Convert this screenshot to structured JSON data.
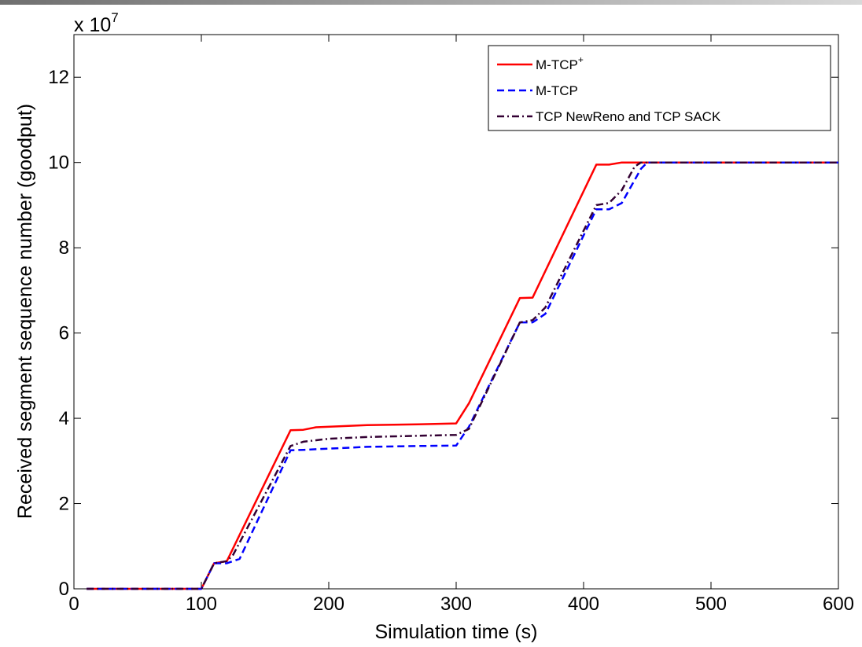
{
  "chart_data": {
    "type": "line",
    "xlabel": "Simulation time (s)",
    "ylabel": "Received segment sequence number (goodput)",
    "y_multiplier_label": "x 10",
    "y_multiplier_exponent": "7",
    "xlim": [
      0,
      600
    ],
    "ylim": [
      0,
      13
    ],
    "xticks": [
      0,
      100,
      200,
      300,
      400,
      500,
      600
    ],
    "xtick_labels": [
      "0",
      "100",
      "200",
      "300",
      "400",
      "500",
      "600"
    ],
    "yticks": [
      0,
      2,
      4,
      6,
      8,
      10,
      12
    ],
    "ytick_labels": [
      "0",
      "2",
      "4",
      "6",
      "8",
      "10",
      "12"
    ],
    "grid": false,
    "legend_position": "top-right",
    "series": [
      {
        "name": "M-TCP",
        "name_superscript": "+",
        "color": "#ff0000",
        "dash": "solid",
        "x": [
          10,
          100,
          110,
          120,
          170,
          180,
          190,
          230,
          270,
          300,
          310,
          350,
          360,
          410,
          420,
          430,
          450,
          600
        ],
        "y": [
          0,
          0,
          0.6,
          0.65,
          3.72,
          3.73,
          3.79,
          3.84,
          3.86,
          3.88,
          4.35,
          6.82,
          6.83,
          9.95,
          9.95,
          10.0,
          10.0,
          10.0
        ]
      },
      {
        "name": "M-TCP",
        "color": "#0000ff",
        "dash": "dashed",
        "x": [
          10,
          100,
          110,
          120,
          130,
          170,
          180,
          230,
          270,
          300,
          310,
          350,
          360,
          370,
          410,
          420,
          430,
          445,
          450,
          600
        ],
        "y": [
          0,
          0,
          0.6,
          0.6,
          0.7,
          3.25,
          3.26,
          3.33,
          3.35,
          3.36,
          3.8,
          6.25,
          6.25,
          6.45,
          8.9,
          8.9,
          9.05,
          9.85,
          10.0,
          10.0
        ]
      },
      {
        "name": "TCP NewReno and TCP SACK",
        "color": "#330033",
        "dash": "dashdot",
        "x": [
          10,
          100,
          110,
          120,
          125,
          170,
          180,
          200,
          230,
          270,
          300,
          310,
          350,
          360,
          370,
          410,
          420,
          430,
          440,
          445,
          600
        ],
        "y": [
          0,
          0,
          0.6,
          0.65,
          0.8,
          3.35,
          3.45,
          3.52,
          3.56,
          3.59,
          3.61,
          3.75,
          6.25,
          6.3,
          6.6,
          9.0,
          9.05,
          9.35,
          9.9,
          10.0,
          10.0
        ]
      }
    ]
  }
}
